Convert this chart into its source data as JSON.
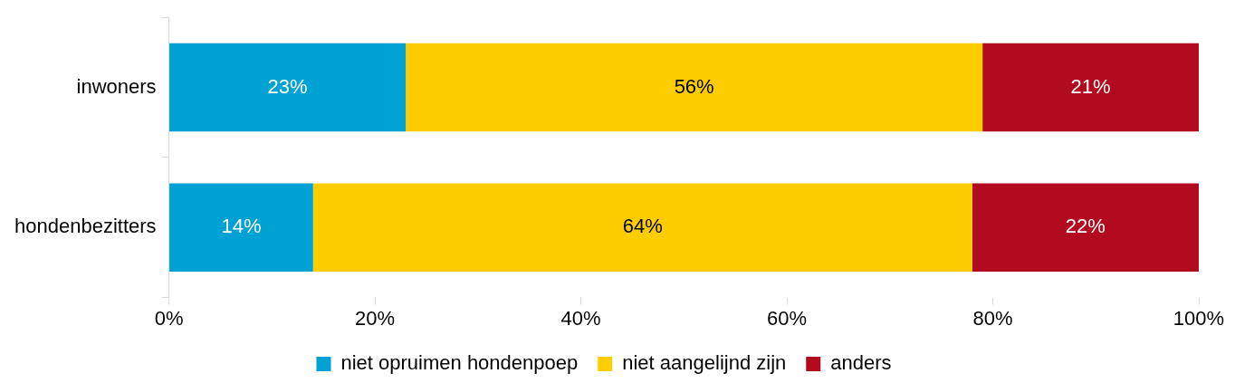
{
  "chart_data": {
    "type": "bar",
    "orientation": "horizontal",
    "stacked": true,
    "categories": [
      "inwoners",
      "hondenbezitters"
    ],
    "series": [
      {
        "name": "niet opruimen hondenpoep",
        "color": "#00a1d3",
        "values": [
          23,
          14
        ],
        "value_labels": [
          "23%",
          "14%"
        ]
      },
      {
        "name": "niet aangelijnd zijn",
        "color": "#fecd00",
        "values": [
          56,
          64
        ],
        "value_labels": [
          "56%",
          "64%"
        ]
      },
      {
        "name": "anders",
        "color": "#b20a1e",
        "values": [
          21,
          22
        ],
        "value_labels": [
          "21%",
          "22%"
        ]
      }
    ],
    "xlim": [
      0,
      100
    ],
    "xticks": [
      {
        "value": 0,
        "label": "0%"
      },
      {
        "value": 20,
        "label": "20%"
      },
      {
        "value": 40,
        "label": "40%"
      },
      {
        "value": 60,
        "label": "60%"
      },
      {
        "value": 80,
        "label": "80%"
      },
      {
        "value": 100,
        "label": "100%"
      }
    ],
    "legend": "bottom"
  }
}
